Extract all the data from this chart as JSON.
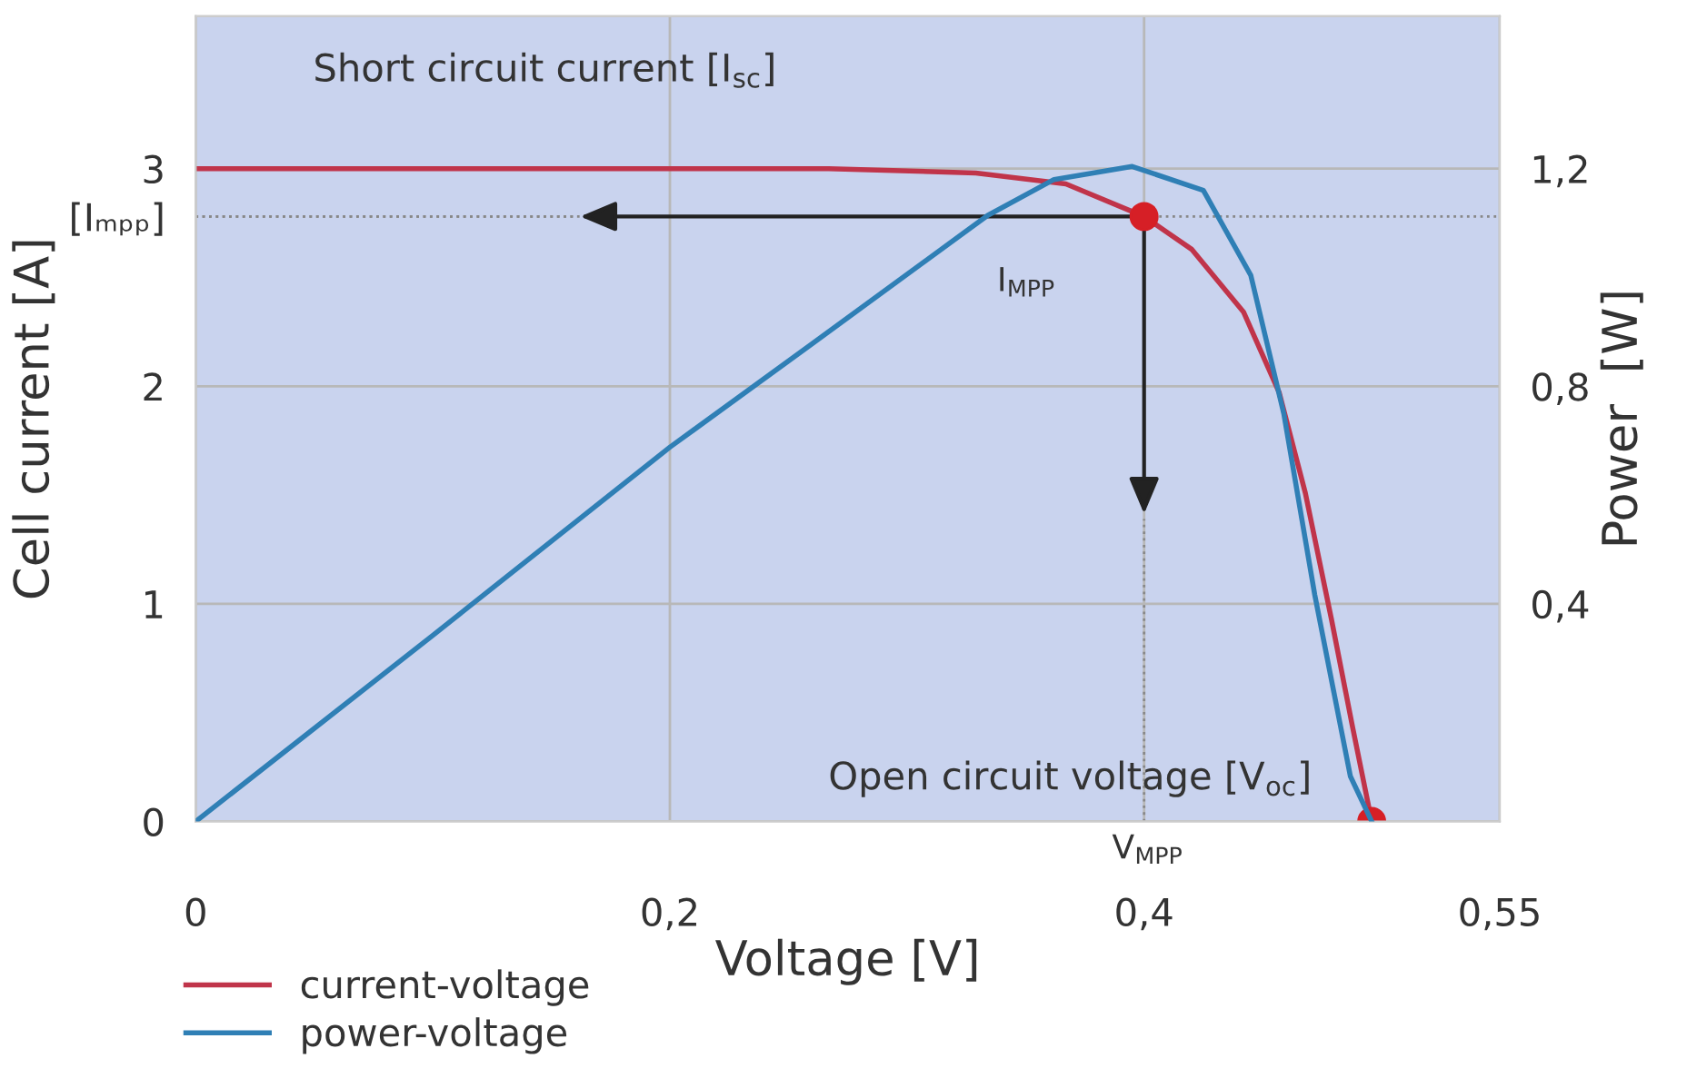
{
  "chart_data": {
    "type": "line",
    "xlabel": "Voltage [V]",
    "ylabel": "Cell current [A]",
    "y2label": "Power  [W]",
    "xlim": [
      0,
      0.55
    ],
    "xticks": [
      0,
      {
        "value": 0.2,
        "label": "0,2"
      },
      {
        "value": 0.4,
        "label": "0,4"
      },
      {
        "value": 0.55,
        "label": "0,55"
      }
    ],
    "ylim": [
      0,
      3.7
    ],
    "yticks": [
      0,
      1,
      2,
      {
        "value": 2.78,
        "label": "[Iₘₚₚ]"
      },
      3
    ],
    "y2lim": [
      0,
      1.48
    ],
    "y2ticks": [
      {
        "value": 0.4,
        "label": "0,4"
      },
      {
        "value": 0.8,
        "label": "0,8"
      },
      {
        "value": 1.2,
        "label": "1,2"
      }
    ],
    "grid": true,
    "legend": "bottom",
    "tick_labels": "xy",
    "series": [
      {
        "name": "current-voltage",
        "color": "#c0344a",
        "axis": "y",
        "marker": "none",
        "x": [
          0,
          0.1,
          0.2,
          0.267,
          0.329,
          0.367,
          0.4,
          0.42,
          0.442,
          0.457,
          0.468,
          0.479,
          0.488,
          0.496
        ],
        "values": [
          3.0,
          3.0,
          3.0,
          3.0,
          2.98,
          2.93,
          2.78,
          2.63,
          2.34,
          1.97,
          1.51,
          0.93,
          0.43,
          0
        ]
      },
      {
        "name": "power-voltage",
        "color": "#2f7fb5",
        "axis": "y2",
        "marker": "none",
        "x": [
          0,
          0.1,
          0.2,
          0.26,
          0.334,
          0.362,
          0.395,
          0.425,
          0.445,
          0.459,
          0.472,
          0.487,
          0.496
        ],
        "values": [
          0,
          0.342,
          0.688,
          0.878,
          1.114,
          1.18,
          1.204,
          1.16,
          1.004,
          0.748,
          0.416,
          0.083,
          0
        ]
      },
      {
        "color": "#d61f26",
        "type": "scatter",
        "axis": "y",
        "marker": "circle",
        "x": [
          0.4,
          0.496
        ],
        "values": [
          2.78,
          0
        ]
      }
    ],
    "annotations": [
      "Short circuit current [I$_{sc}$]",
      "Open circuit voltage [V$_{oc}$]",
      "I$_{MPP}$",
      "V$_{MPP}$"
    ]
  }
}
